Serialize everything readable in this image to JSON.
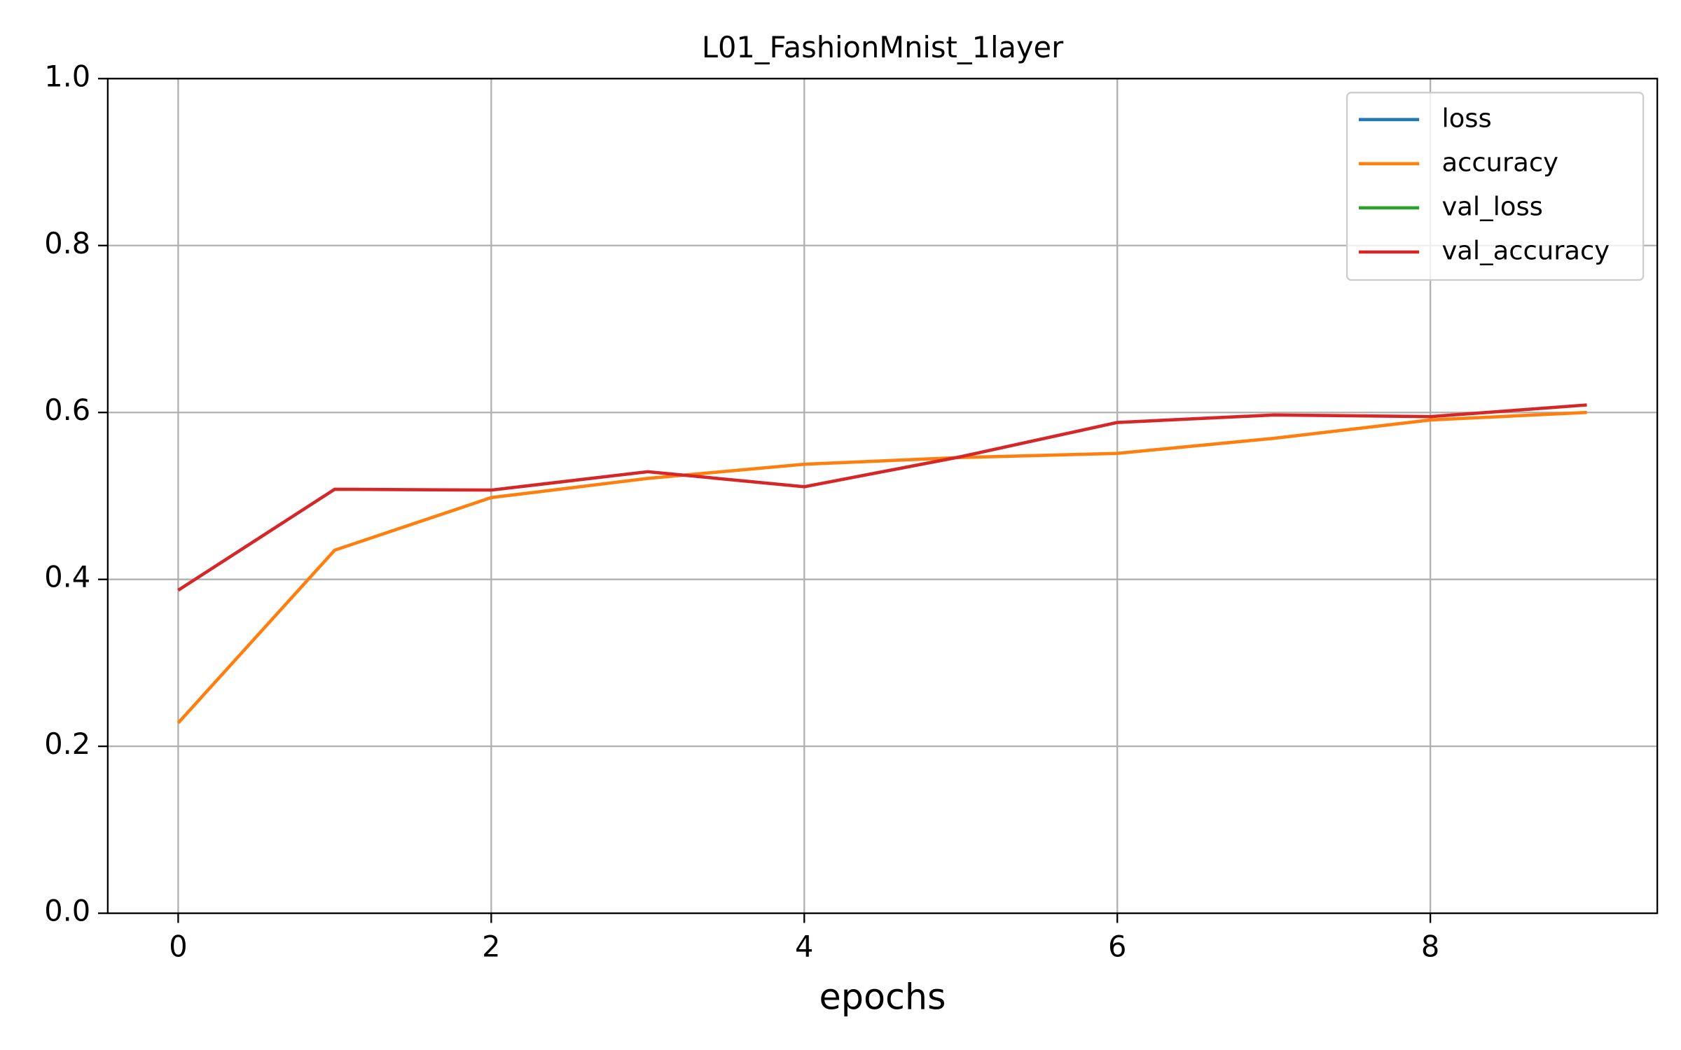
{
  "chart_data": {
    "type": "line",
    "title": "L01_FashionMnist_1layer",
    "x_label": "epochs",
    "x": [
      0,
      1,
      2,
      3,
      4,
      5,
      6,
      7,
      8,
      9
    ],
    "series": [
      {
        "name": "loss",
        "color": "#1f77b4",
        "values": [
          null,
          null,
          null,
          null,
          null,
          null,
          null,
          null,
          null,
          null
        ]
      },
      {
        "name": "accuracy",
        "color": "#ff7f0e",
        "values": [
          0.228,
          0.435,
          0.498,
          0.521,
          0.538,
          0.546,
          0.551,
          0.569,
          0.591,
          0.6
        ]
      },
      {
        "name": "val_loss",
        "color": "#2ca02c",
        "values": [
          null,
          null,
          null,
          null,
          null,
          null,
          null,
          null,
          null,
          null
        ]
      },
      {
        "name": "val_accuracy",
        "color": "#d62728",
        "values": [
          0.387,
          0.508,
          0.507,
          0.529,
          0.511,
          0.547,
          0.588,
          0.597,
          0.595,
          0.609
        ]
      }
    ],
    "xlim": [
      -0.45,
      9.45
    ],
    "xticks": [
      0,
      2,
      4,
      6,
      8
    ],
    "ylim": [
      0,
      1
    ],
    "yticks": [
      {
        "value": 0,
        "label": "0.0"
      },
      {
        "value": 0.2,
        "label": "0.2"
      },
      {
        "value": 0.4,
        "label": "0.4"
      },
      {
        "value": 0.6,
        "label": "0.6"
      },
      {
        "value": 0.8,
        "label": "0.8"
      },
      {
        "value": 1,
        "label": "1.0"
      }
    ],
    "grid": true,
    "legend": "upper right"
  }
}
